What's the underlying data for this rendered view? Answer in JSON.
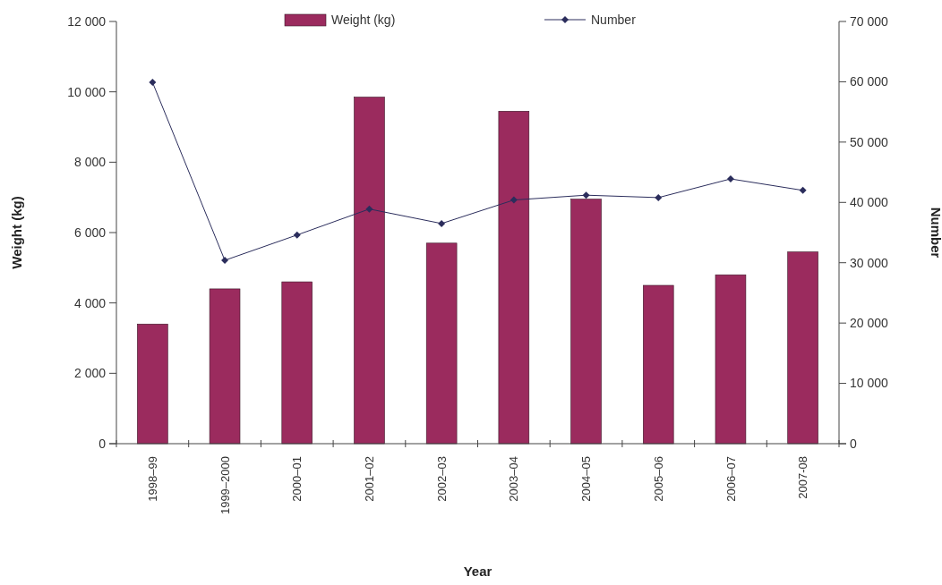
{
  "chart_data": {
    "type": "bar",
    "xlabel": "Year",
    "ylabel": "Weight (kg)",
    "y2label": "Number",
    "categories": [
      "1998–99",
      "1999–2000",
      "2000–01",
      "2001–02",
      "2002–03",
      "2003–04",
      "2004–05",
      "2005–06",
      "2006–07",
      "2007-08"
    ],
    "series": [
      {
        "name": "Weight (kg)",
        "color": "#9b2b5e",
        "values": [
          3400,
          4400,
          4600,
          9850,
          5700,
          9450,
          6950,
          4500,
          4800,
          5450
        ]
      },
      {
        "name": "Number",
        "type": "line",
        "axis": "y2",
        "color": "#2b2d5c",
        "marker": "diamond",
        "values": [
          59900,
          30400,
          34600,
          38900,
          36500,
          40400,
          41200,
          40800,
          43900,
          42000
        ]
      }
    ],
    "ylim": [
      0,
      12000
    ],
    "yticks": [
      0,
      {
        "value": 2000,
        "label": "2 000"
      },
      {
        "value": 4000,
        "label": "4 000"
      },
      {
        "value": 6000,
        "label": "6 000"
      },
      {
        "value": 8000,
        "label": "8 000"
      },
      {
        "value": 10000,
        "label": "10 000"
      },
      {
        "value": 12000,
        "label": "12 000"
      }
    ],
    "y2lim": [
      0,
      70000
    ],
    "y2ticks": [
      0,
      {
        "value": 10000,
        "label": "10 000"
      },
      {
        "value": 20000,
        "label": "20 000"
      },
      {
        "value": 30000,
        "label": "30 000"
      },
      {
        "value": 40000,
        "label": "40 000"
      },
      {
        "value": 50000,
        "label": "50 000"
      },
      {
        "value": 60000,
        "label": "60 000"
      },
      {
        "value": 70000,
        "label": "70 000"
      }
    ],
    "legend": "top",
    "grid": false
  }
}
